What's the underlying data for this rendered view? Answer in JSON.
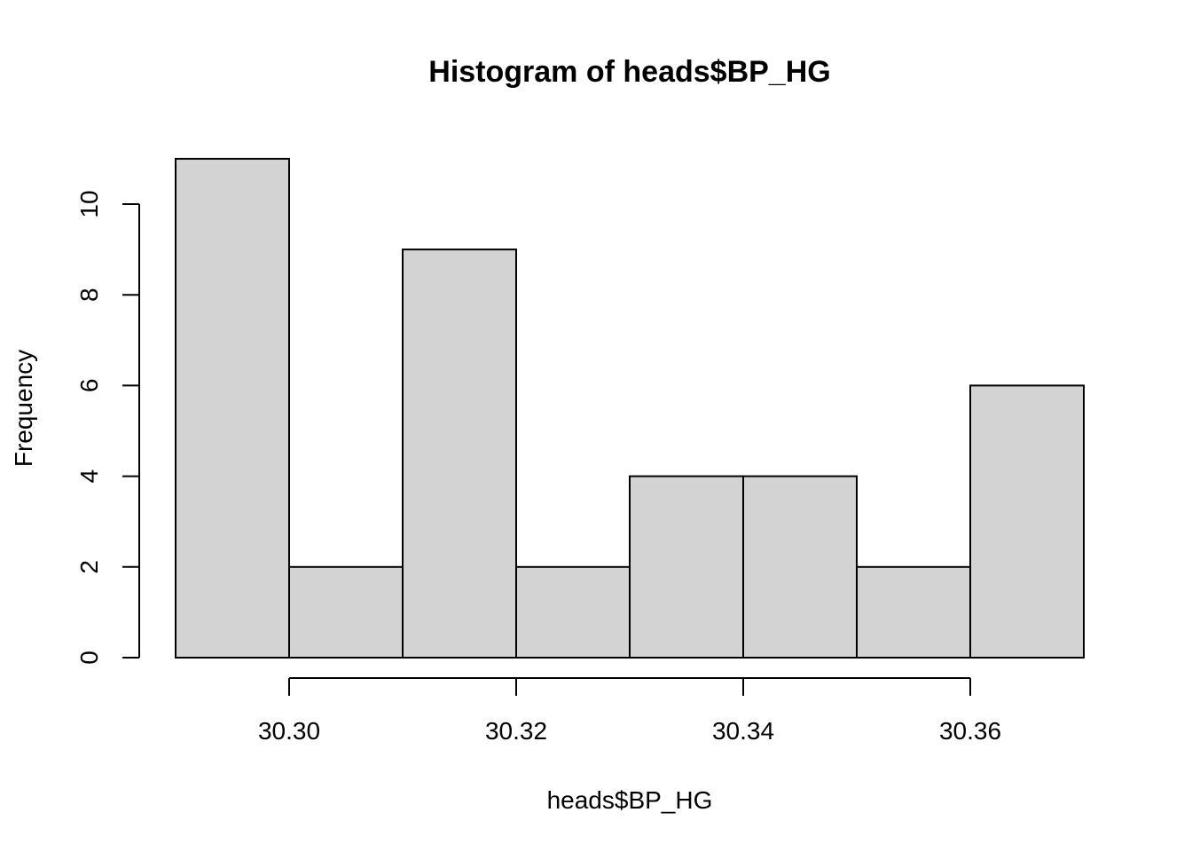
{
  "chart_data": {
    "type": "bar",
    "title": "Histogram of heads$BP_HG",
    "xlabel": "heads$BP_HG",
    "ylabel": "Frequency",
    "bins": [
      {
        "start": 30.29,
        "end": 30.3,
        "count": 11
      },
      {
        "start": 30.3,
        "end": 30.31,
        "count": 2
      },
      {
        "start": 30.31,
        "end": 30.32,
        "count": 9
      },
      {
        "start": 30.32,
        "end": 30.33,
        "count": 2
      },
      {
        "start": 30.33,
        "end": 30.34,
        "count": 4
      },
      {
        "start": 30.34,
        "end": 30.35,
        "count": 4
      },
      {
        "start": 30.35,
        "end": 30.36,
        "count": 2
      },
      {
        "start": 30.36,
        "end": 30.37,
        "count": 6
      }
    ],
    "xlim": [
      30.29,
      30.37
    ],
    "ylim": [
      0,
      11
    ],
    "x_ticks": [
      {
        "value": 30.3,
        "label": "30.30"
      },
      {
        "value": 30.32,
        "label": "30.32"
      },
      {
        "value": 30.34,
        "label": "30.34"
      },
      {
        "value": 30.36,
        "label": "30.36"
      }
    ],
    "y_ticks": [
      {
        "value": 0,
        "label": "0"
      },
      {
        "value": 2,
        "label": "2"
      },
      {
        "value": 4,
        "label": "4"
      },
      {
        "value": 6,
        "label": "6"
      },
      {
        "value": 8,
        "label": "8"
      },
      {
        "value": 10,
        "label": "10"
      }
    ],
    "colors": {
      "bar_fill": "#d3d3d3",
      "bar_stroke": "#000000"
    },
    "grid": false,
    "legend": "none"
  }
}
